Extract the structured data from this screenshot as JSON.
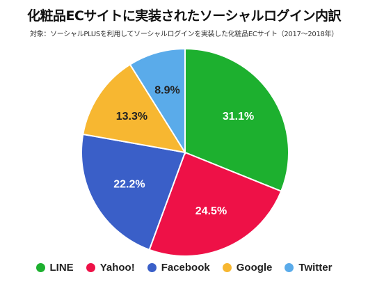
{
  "title": "化粧品ECサイトに実装されたソーシャルログイン内訳",
  "subtitle": "対象：ソーシャルPLUSを利用してソーシャルログインを実装した化粧品ECサイト（2017〜2018年）",
  "chart_data": {
    "type": "pie",
    "categories": [
      "LINE",
      "Yahoo!",
      "Facebook",
      "Google",
      "Twitter"
    ],
    "values": [
      31.1,
      24.5,
      22.2,
      13.3,
      8.9
    ],
    "labels": [
      "31.1%",
      "24.5%",
      "22.2%",
      "13.3%",
      "8.9%"
    ],
    "colors": [
      "#1db02f",
      "#ee1147",
      "#3a5fc8",
      "#f7b731",
      "#5aabea"
    ],
    "label_colors": [
      "#ffffff",
      "#ffffff",
      "#ffffff",
      "#222222",
      "#222222"
    ],
    "start_angle_deg": 0,
    "direction": "clockwise",
    "legend_placement": "bottom"
  }
}
